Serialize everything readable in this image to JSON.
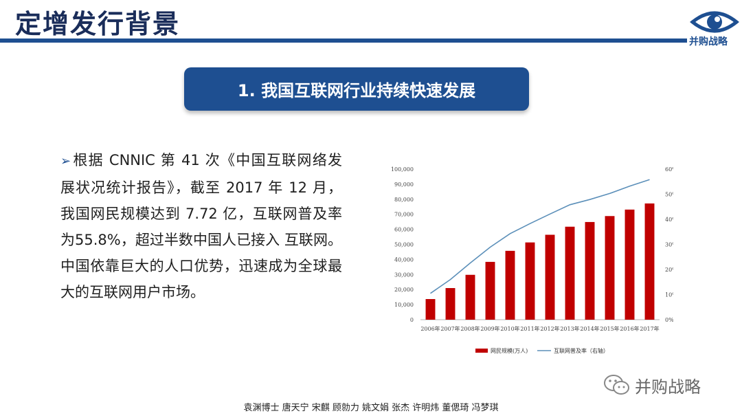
{
  "slide": {
    "title": "定增发行背景",
    "logo_text": "并购战略",
    "banner": "1. 我国互联网行业持续快速发展",
    "paragraph": "根据 CNNIC 第 41 次《中国互联网络发展状况统计报告》，截至 2017 年 12 月，我国网民规模达到 7.72 亿，互联网普及率为55.8%，超过半数中国人已接入 互联网。中国依靠巨大的人口优势，迅速成为全球最大的互联网用户市场。",
    "wechat_label": "并购战略",
    "authors": "袁渊博士 唐天宁 宋麒 顾勍力 姚文娟 张杰 许明炜 董偲琦 冯梦琪"
  },
  "chart_data": {
    "type": "bar",
    "categories": [
      "2006年",
      "2007年",
      "2008年",
      "2009年",
      "2010年",
      "2011年",
      "2012年",
      "2013年",
      "2014年",
      "2015年",
      "2016年",
      "2017年"
    ],
    "series": [
      {
        "name": "网民规模(万人)",
        "type": "bar",
        "axis": "left",
        "values": [
          13700,
          21000,
          29800,
          38400,
          45730,
          51310,
          56400,
          61758,
          64875,
          68826,
          73125,
          77198
        ]
      },
      {
        "name": "互联网普及率（右轴）",
        "type": "line",
        "axis": "right",
        "values": [
          10.5,
          16.0,
          22.6,
          28.9,
          34.3,
          38.3,
          42.1,
          45.8,
          47.9,
          50.3,
          53.2,
          55.8
        ]
      }
    ],
    "y_left": {
      "range": [
        0,
        100000
      ],
      "ticks": [
        "0",
        "10,000",
        "20,000",
        "30,000",
        "40,000",
        "50,000",
        "60,000",
        "70,000",
        "80,000",
        "90,000",
        "100,000"
      ]
    },
    "y_right": {
      "range": [
        0,
        60
      ],
      "ticks": [
        "0%",
        "10%",
        "20%",
        "30%",
        "40%",
        "50%",
        "60%"
      ]
    },
    "legend_position": "bottom",
    "colors": {
      "bar": "#c00000",
      "line": "#5b8fb9"
    }
  }
}
